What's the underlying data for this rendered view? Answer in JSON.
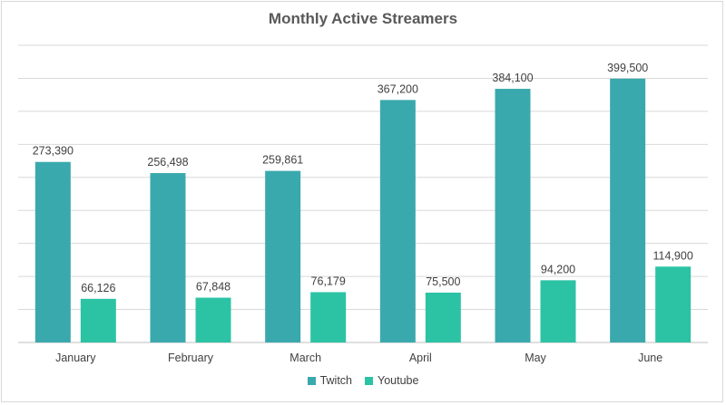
{
  "chart_data": {
    "type": "bar",
    "title": "Monthly Active Streamers",
    "categories": [
      "January",
      "February",
      "March",
      "April",
      "May",
      "June"
    ],
    "series": [
      {
        "name": "Twitch",
        "color": "#3aa9ad",
        "values": [
          273390,
          256498,
          259861,
          367200,
          384100,
          399500
        ],
        "labels": [
          "273,390",
          "256,498",
          "259,861",
          "367,200",
          "384,100",
          "399,500"
        ]
      },
      {
        "name": "Youtube",
        "color": "#2cc3a4",
        "values": [
          66126,
          67848,
          76179,
          75500,
          94200,
          114900
        ],
        "labels": [
          "66,126",
          "67,848",
          "76,179",
          "75,500",
          "94,200",
          "114,900"
        ]
      }
    ],
    "ylim": [
      0,
      450000
    ],
    "grid": true,
    "legend": "bottom"
  }
}
